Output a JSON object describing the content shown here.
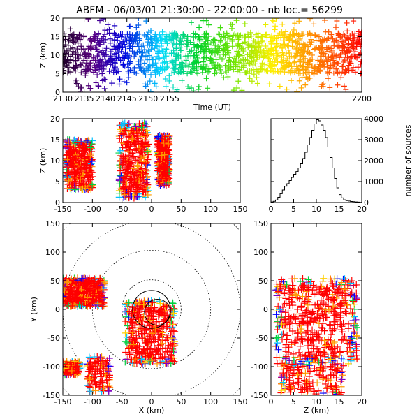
{
  "header": {
    "title": "ABFM - 06/03/01 21:30:00 - 22:00:00 - nb loc.= 56299"
  },
  "colors": {
    "frame": "#000000",
    "series_points": "#ff0000",
    "histogram_line": "#000000",
    "range_rings": "#000000"
  },
  "chart_data": [
    {
      "type": "scatter",
      "panel": "time-height",
      "xlabel": "Time (UT)",
      "ylabel": "Z (km)",
      "x_ticks": [
        "2130",
        "2135",
        "2140",
        "2145",
        "2150",
        "2155",
        "2200"
      ],
      "y_ticks": [
        "0",
        "5",
        "10",
        "15",
        "20"
      ],
      "xlim": [
        2130,
        2200
      ],
      "ylim": [
        0,
        20
      ],
      "color_encoding": "time (purple → blue → cyan → green → yellow → orange → red)",
      "bands": [
        {
          "x": 2130,
          "y_low": 5,
          "y_high": 16
        },
        {
          "x": 2140,
          "y_low": 4,
          "y_high": 17
        },
        {
          "x": 2150,
          "y_low": 4,
          "y_high": 16
        },
        {
          "x": 2160,
          "y_low": 4,
          "y_high": 16
        },
        {
          "x": 2170,
          "y_low": 4,
          "y_high": 16
        },
        {
          "x": 2180,
          "y_low": 4,
          "y_high": 16
        },
        {
          "x": 2190,
          "y_low": 4,
          "y_high": 16
        },
        {
          "x": 2200,
          "y_low": 4,
          "y_high": 16
        }
      ]
    },
    {
      "type": "scatter",
      "panel": "x-z",
      "ylabel": "Z (km)",
      "x_ticks": [
        "-150",
        "-100",
        "-50",
        "0",
        "50",
        "100",
        "150"
      ],
      "y_ticks": [
        "0",
        "5",
        "10",
        "15",
        "20"
      ],
      "xlim": [
        -150,
        150
      ],
      "ylim": [
        0,
        20
      ],
      "clusters": [
        {
          "x_min": -145,
          "x_max": -100,
          "z_min": 3,
          "z_max": 15
        },
        {
          "x_min": -55,
          "x_max": -5,
          "z_min": 1,
          "z_max": 19
        },
        {
          "x_min": 10,
          "x_max": 30,
          "z_min": 4,
          "z_max": 16
        }
      ]
    },
    {
      "type": "histogram",
      "panel": "z-histogram",
      "ylabel": "number of sources",
      "x_ticks": [
        "0",
        "5",
        "10",
        "15",
        "20"
      ],
      "y_ticks": [
        "0",
        "1000",
        "2000",
        "3000",
        "4000"
      ],
      "xlim": [
        0,
        20
      ],
      "ylim": [
        0,
        4000
      ],
      "bin_width_km": 0.5,
      "values": [
        30,
        60,
        120,
        250,
        420,
        600,
        780,
        900,
        1050,
        1200,
        1350,
        1480,
        1650,
        1850,
        2100,
        2400,
        2750,
        3100,
        3450,
        3750,
        3950,
        3900,
        3700,
        3450,
        3100,
        2650,
        2150,
        1650,
        1150,
        700,
        380,
        220,
        130,
        90,
        70,
        50,
        40,
        30,
        20,
        10
      ]
    },
    {
      "type": "scatter",
      "panel": "plan-view",
      "xlabel": "X (km)",
      "ylabel": "Y (km)",
      "x_ticks": [
        "-150",
        "-100",
        "-50",
        "0",
        "50",
        "100",
        "150"
      ],
      "y_ticks": [
        "-150",
        "-100",
        "-50",
        "0",
        "50",
        "100",
        "150"
      ],
      "xlim": [
        -150,
        150
      ],
      "ylim": [
        -150,
        150
      ],
      "range_rings_km": [
        50,
        100,
        150,
        200
      ],
      "clusters": [
        {
          "x_min": -150,
          "x_max": -80,
          "y_min": 5,
          "y_max": 55
        },
        {
          "x_min": -45,
          "x_max": 40,
          "y_min": -95,
          "y_max": 15
        },
        {
          "x_min": -150,
          "x_max": -120,
          "y_min": -115,
          "y_max": -90
        },
        {
          "x_min": -110,
          "x_max": -70,
          "y_min": -145,
          "y_max": -80
        }
      ]
    },
    {
      "type": "scatter",
      "panel": "z-y",
      "xlabel": "Z (km)",
      "x_ticks": [
        "0",
        "5",
        "10",
        "15",
        "20"
      ],
      "y_ticks": [
        "-150",
        "-100",
        "-50",
        "0",
        "50",
        "100",
        "150"
      ],
      "xlim": [
        0,
        20
      ],
      "ylim": [
        -150,
        150
      ],
      "clusters": [
        {
          "z_min": 1,
          "z_max": 19,
          "y_min": -95,
          "y_max": 55
        },
        {
          "z_min": 2,
          "z_max": 16,
          "y_min": -150,
          "y_max": -95
        }
      ]
    }
  ]
}
